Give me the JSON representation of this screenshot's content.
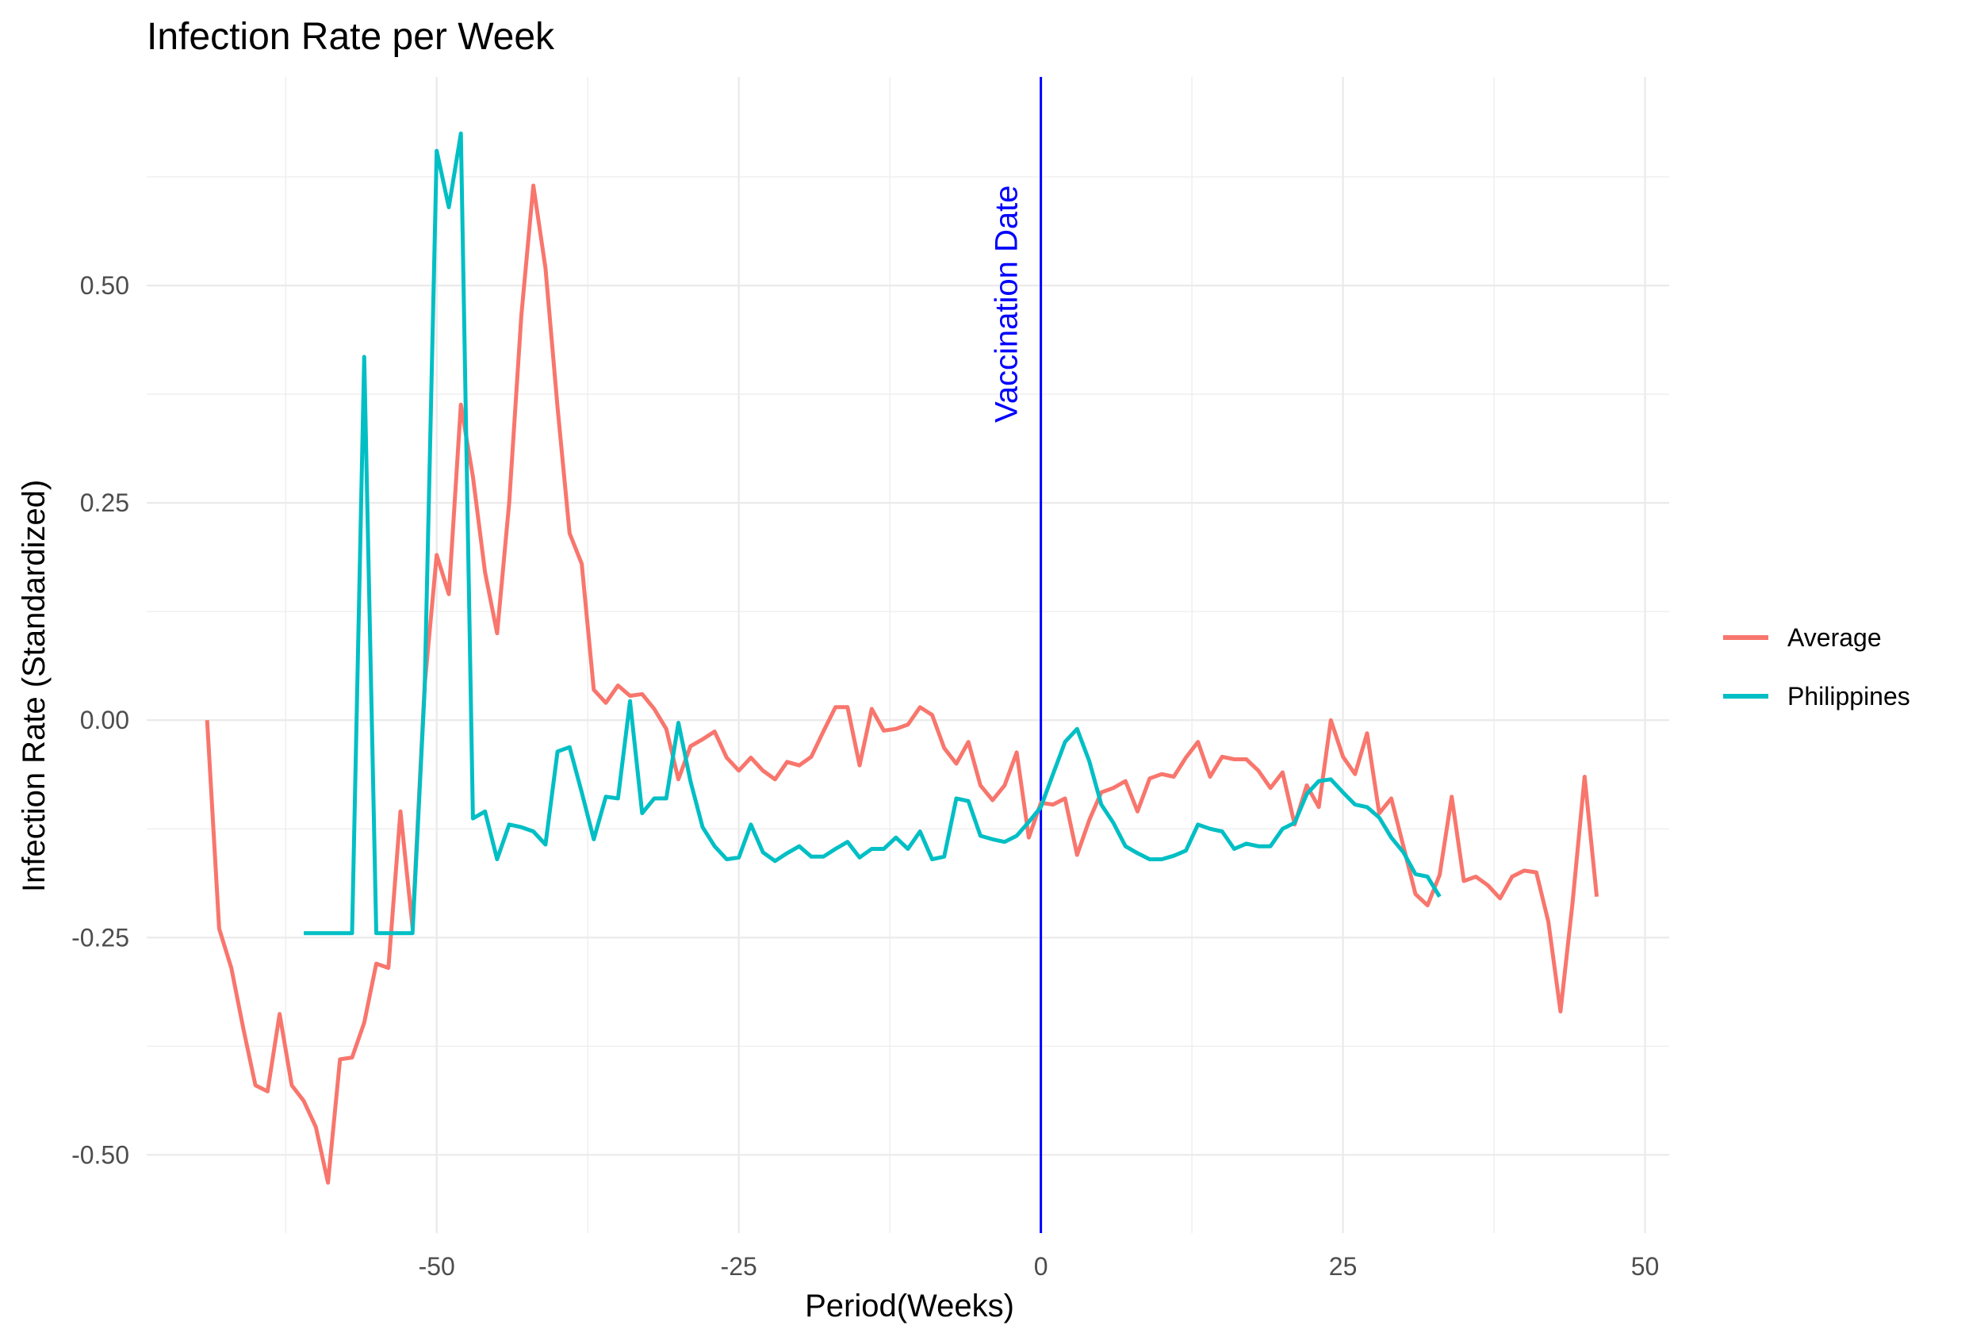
{
  "chart_data": {
    "type": "line",
    "title": "Infection Rate per Week",
    "xlabel": "Period(Weeks)",
    "ylabel": "Infection Rate (Standardized)",
    "xlim": [
      -74,
      52
    ],
    "ylim": [
      -0.59,
      0.74
    ],
    "x_ticks": [
      -50,
      -25,
      0,
      25,
      50
    ],
    "x_tick_labels": [
      "-50",
      "-25",
      "0",
      "25",
      "50"
    ],
    "y_ticks": [
      -0.5,
      -0.25,
      0.0,
      0.25,
      0.5
    ],
    "y_tick_labels": [
      "-0.50",
      "-0.25",
      "0.00",
      "0.25",
      "0.50"
    ],
    "grid": true,
    "legend_position": "right",
    "annotations": [
      {
        "type": "vline",
        "x": 0,
        "label": "Vaccination Date",
        "color": "#0000ff"
      }
    ],
    "series": [
      {
        "name": "Average",
        "color": "#f8766d",
        "x": [
          -69,
          -68,
          -67,
          -66,
          -65,
          -64,
          -63,
          -62,
          -61,
          -60,
          -59,
          -58,
          -57,
          -56,
          -55,
          -54,
          -53,
          -52,
          -51,
          -50,
          -49,
          -48,
          -47,
          -46,
          -45,
          -44,
          -43,
          -42,
          -41,
          -40,
          -39,
          -38,
          -37,
          -36,
          -35,
          -34,
          -33,
          -32,
          -31,
          -30,
          -29,
          -28,
          -27,
          -26,
          -25,
          -24,
          -23,
          -22,
          -21,
          -20,
          -19,
          -18,
          -17,
          -16,
          -15,
          -14,
          -13,
          -12,
          -11,
          -10,
          -9,
          -8,
          -7,
          -6,
          -5,
          -4,
          -3,
          -2,
          -1,
          0,
          1,
          2,
          3,
          4,
          5,
          6,
          7,
          8,
          9,
          10,
          11,
          12,
          13,
          14,
          15,
          16,
          17,
          18,
          19,
          20,
          21,
          22,
          23,
          24,
          25,
          26,
          27,
          28,
          29,
          30,
          31,
          32,
          33,
          34,
          35,
          36,
          37,
          38,
          39,
          40,
          41,
          42,
          43,
          44,
          45,
          46
        ],
        "y": [
          0.0,
          -0.24,
          -0.285,
          -0.355,
          -0.42,
          -0.427,
          -0.338,
          -0.42,
          -0.438,
          -0.468,
          -0.532,
          -0.39,
          -0.388,
          -0.348,
          -0.28,
          -0.285,
          -0.105,
          -0.238,
          0.04,
          0.19,
          0.145,
          0.363,
          0.28,
          0.17,
          0.1,
          0.25,
          0.465,
          0.615,
          0.52,
          0.36,
          0.215,
          0.18,
          0.035,
          0.02,
          0.04,
          0.028,
          0.03,
          0.013,
          -0.01,
          -0.068,
          -0.03,
          -0.022,
          -0.013,
          -0.043,
          -0.058,
          -0.043,
          -0.058,
          -0.068,
          -0.048,
          -0.052,
          -0.042,
          -0.013,
          0.015,
          0.015,
          -0.052,
          0.013,
          -0.012,
          -0.01,
          -0.005,
          0.015,
          0.006,
          -0.032,
          -0.05,
          -0.025,
          -0.075,
          -0.092,
          -0.075,
          -0.037,
          -0.135,
          -0.095,
          -0.097,
          -0.09,
          -0.155,
          -0.115,
          -0.083,
          -0.078,
          -0.07,
          -0.105,
          -0.067,
          -0.062,
          -0.065,
          -0.043,
          -0.025,
          -0.065,
          -0.042,
          -0.045,
          -0.045,
          -0.058,
          -0.078,
          -0.06,
          -0.12,
          -0.075,
          -0.1,
          0.0,
          -0.042,
          -0.062,
          -0.015,
          -0.107,
          -0.09,
          -0.145,
          -0.2,
          -0.213,
          -0.178,
          -0.088,
          -0.185,
          -0.18,
          -0.19,
          -0.205,
          -0.18,
          -0.173,
          -0.175,
          -0.232,
          -0.335,
          -0.21,
          -0.065,
          -0.203
        ]
      },
      {
        "name": "Philippines",
        "color": "#00bfc4",
        "x": [
          -61,
          -60,
          -59,
          -58,
          -57,
          -56,
          -55,
          -54,
          -53,
          -52,
          -51,
          -50,
          -49,
          -48,
          -47,
          -46,
          -45,
          -44,
          -43,
          -42,
          -41,
          -40,
          -39,
          -38,
          -37,
          -36,
          -35,
          -34,
          -33,
          -32,
          -31,
          -30,
          -29,
          -28,
          -27,
          -26,
          -25,
          -24,
          -23,
          -22,
          -21,
          -20,
          -19,
          -18,
          -17,
          -16,
          -15,
          -14,
          -13,
          -12,
          -11,
          -10,
          -9,
          -8,
          -7,
          -6,
          -5,
          -4,
          -3,
          -2,
          -1,
          0,
          1,
          2,
          3,
          4,
          5,
          6,
          7,
          8,
          9,
          10,
          11,
          12,
          13,
          14,
          15,
          16,
          17,
          18,
          19,
          20,
          21,
          22,
          23,
          24,
          25,
          26,
          27,
          28,
          29,
          30,
          31,
          32,
          33
        ],
        "y": [
          -0.245,
          -0.245,
          -0.245,
          -0.245,
          -0.245,
          0.418,
          -0.245,
          -0.245,
          -0.245,
          -0.245,
          0.035,
          0.655,
          0.59,
          0.675,
          -0.113,
          -0.105,
          -0.16,
          -0.12,
          -0.123,
          -0.128,
          -0.143,
          -0.036,
          -0.031,
          -0.083,
          -0.137,
          -0.088,
          -0.09,
          0.022,
          -0.107,
          -0.09,
          -0.09,
          -0.003,
          -0.07,
          -0.123,
          -0.145,
          -0.16,
          -0.158,
          -0.12,
          -0.152,
          -0.162,
          -0.153,
          -0.145,
          -0.157,
          -0.157,
          -0.148,
          -0.14,
          -0.158,
          -0.148,
          -0.148,
          -0.135,
          -0.148,
          -0.128,
          -0.16,
          -0.157,
          -0.09,
          -0.093,
          -0.133,
          -0.137,
          -0.14,
          -0.133,
          -0.117,
          -0.1,
          -0.062,
          -0.025,
          -0.01,
          -0.047,
          -0.097,
          -0.118,
          -0.145,
          -0.153,
          -0.16,
          -0.16,
          -0.156,
          -0.15,
          -0.12,
          -0.125,
          -0.128,
          -0.148,
          -0.142,
          -0.145,
          -0.145,
          -0.125,
          -0.118,
          -0.085,
          -0.07,
          -0.068,
          -0.083,
          -0.097,
          -0.1,
          -0.112,
          -0.135,
          -0.152,
          -0.177,
          -0.18,
          -0.203
        ]
      }
    ]
  }
}
